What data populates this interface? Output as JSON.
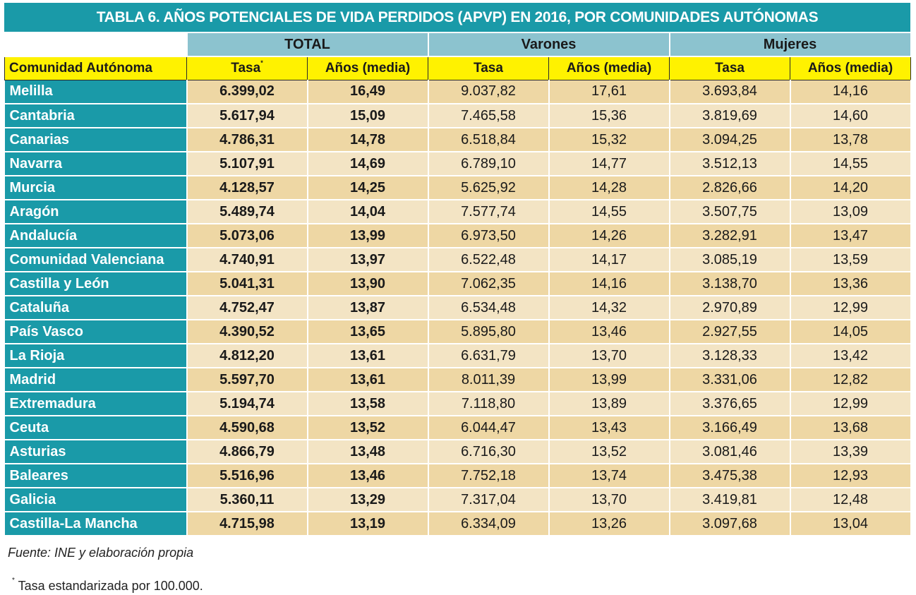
{
  "title": "TABLA 6. AÑOS POTENCIALES DE VIDA PERDIDOS (APVP) EN 2016, POR COMUNIDADES AUTÓNOMAS",
  "group_headers": [
    "TOTAL",
    "Varones",
    "Mujeres"
  ],
  "column_headers": {
    "region": "Comunidad Autónoma",
    "total_tasa": "Tasa",
    "total_tasa_mark": "*",
    "total_anos": "Años (media)",
    "var_tasa": "Tasa",
    "var_anos": "Años (media)",
    "muj_tasa": "Tasa",
    "muj_anos": "Años (media)"
  },
  "rows": [
    [
      "Melilla",
      "6.399,02",
      "16,49",
      "9.037,82",
      "17,61",
      "3.693,84",
      "14,16"
    ],
    [
      "Cantabria",
      "5.617,94",
      "15,09",
      "7.465,58",
      "15,36",
      "3.819,69",
      "14,60"
    ],
    [
      "Canarias",
      "4.786,31",
      "14,78",
      "6.518,84",
      "15,32",
      "3.094,25",
      "13,78"
    ],
    [
      "Navarra",
      "5.107,91",
      "14,69",
      "6.789,10",
      "14,77",
      "3.512,13",
      "14,55"
    ],
    [
      "Murcia",
      "4.128,57",
      "14,25",
      "5.625,92",
      "14,28",
      "2.826,66",
      "14,20"
    ],
    [
      "Aragón",
      "5.489,74",
      "14,04",
      "7.577,74",
      "14,55",
      "3.507,75",
      "13,09"
    ],
    [
      "Andalucía",
      "5.073,06",
      "13,99",
      "6.973,50",
      "14,26",
      "3.282,91",
      "13,47"
    ],
    [
      "Comunidad Valenciana",
      "4.740,91",
      "13,97",
      "6.522,48",
      "14,17",
      "3.085,19",
      "13,59"
    ],
    [
      "Castilla y León",
      "5.041,31",
      "13,90",
      "7.062,35",
      "14,16",
      "3.138,70",
      "13,36"
    ],
    [
      "Cataluña",
      "4.752,47",
      "13,87",
      "6.534,48",
      "14,32",
      "2.970,89",
      "12,99"
    ],
    [
      "País Vasco",
      "4.390,52",
      "13,65",
      "5.895,80",
      "13,46",
      "2.927,55",
      "14,05"
    ],
    [
      "La Rioja",
      "4.812,20",
      "13,61",
      "6.631,79",
      "13,70",
      "3.128,33",
      "13,42"
    ],
    [
      "Madrid",
      "5.597,70",
      "13,61",
      "8.011,39",
      "13,99",
      "3.331,06",
      "12,82"
    ],
    [
      "Extremadura",
      "5.194,74",
      "13,58",
      "7.118,80",
      "13,89",
      "3.376,65",
      "12,99"
    ],
    [
      "Ceuta",
      "4.590,68",
      "13,52",
      "6.044,47",
      "13,43",
      "3.166,49",
      "13,68"
    ],
    [
      "Asturias",
      "4.866,79",
      "13,48",
      "6.716,30",
      "13,52",
      "3.081,46",
      "13,39"
    ],
    [
      "Baleares",
      "5.516,96",
      "13,46",
      "7.752,18",
      "13,74",
      "3.475,38",
      "12,93"
    ],
    [
      "Galicia",
      "5.360,11",
      "13,29",
      "7.317,04",
      "13,70",
      "3.419,81",
      "12,48"
    ],
    [
      "Castilla-La Mancha",
      "4.715,98",
      "13,19",
      "6.334,09",
      "13,26",
      "3.097,68",
      "13,04"
    ]
  ],
  "source": "Fuente: INE y elaboración propia",
  "footnote": {
    "mark": "*",
    "text": " Tasa estandarizada por 100.000."
  }
}
